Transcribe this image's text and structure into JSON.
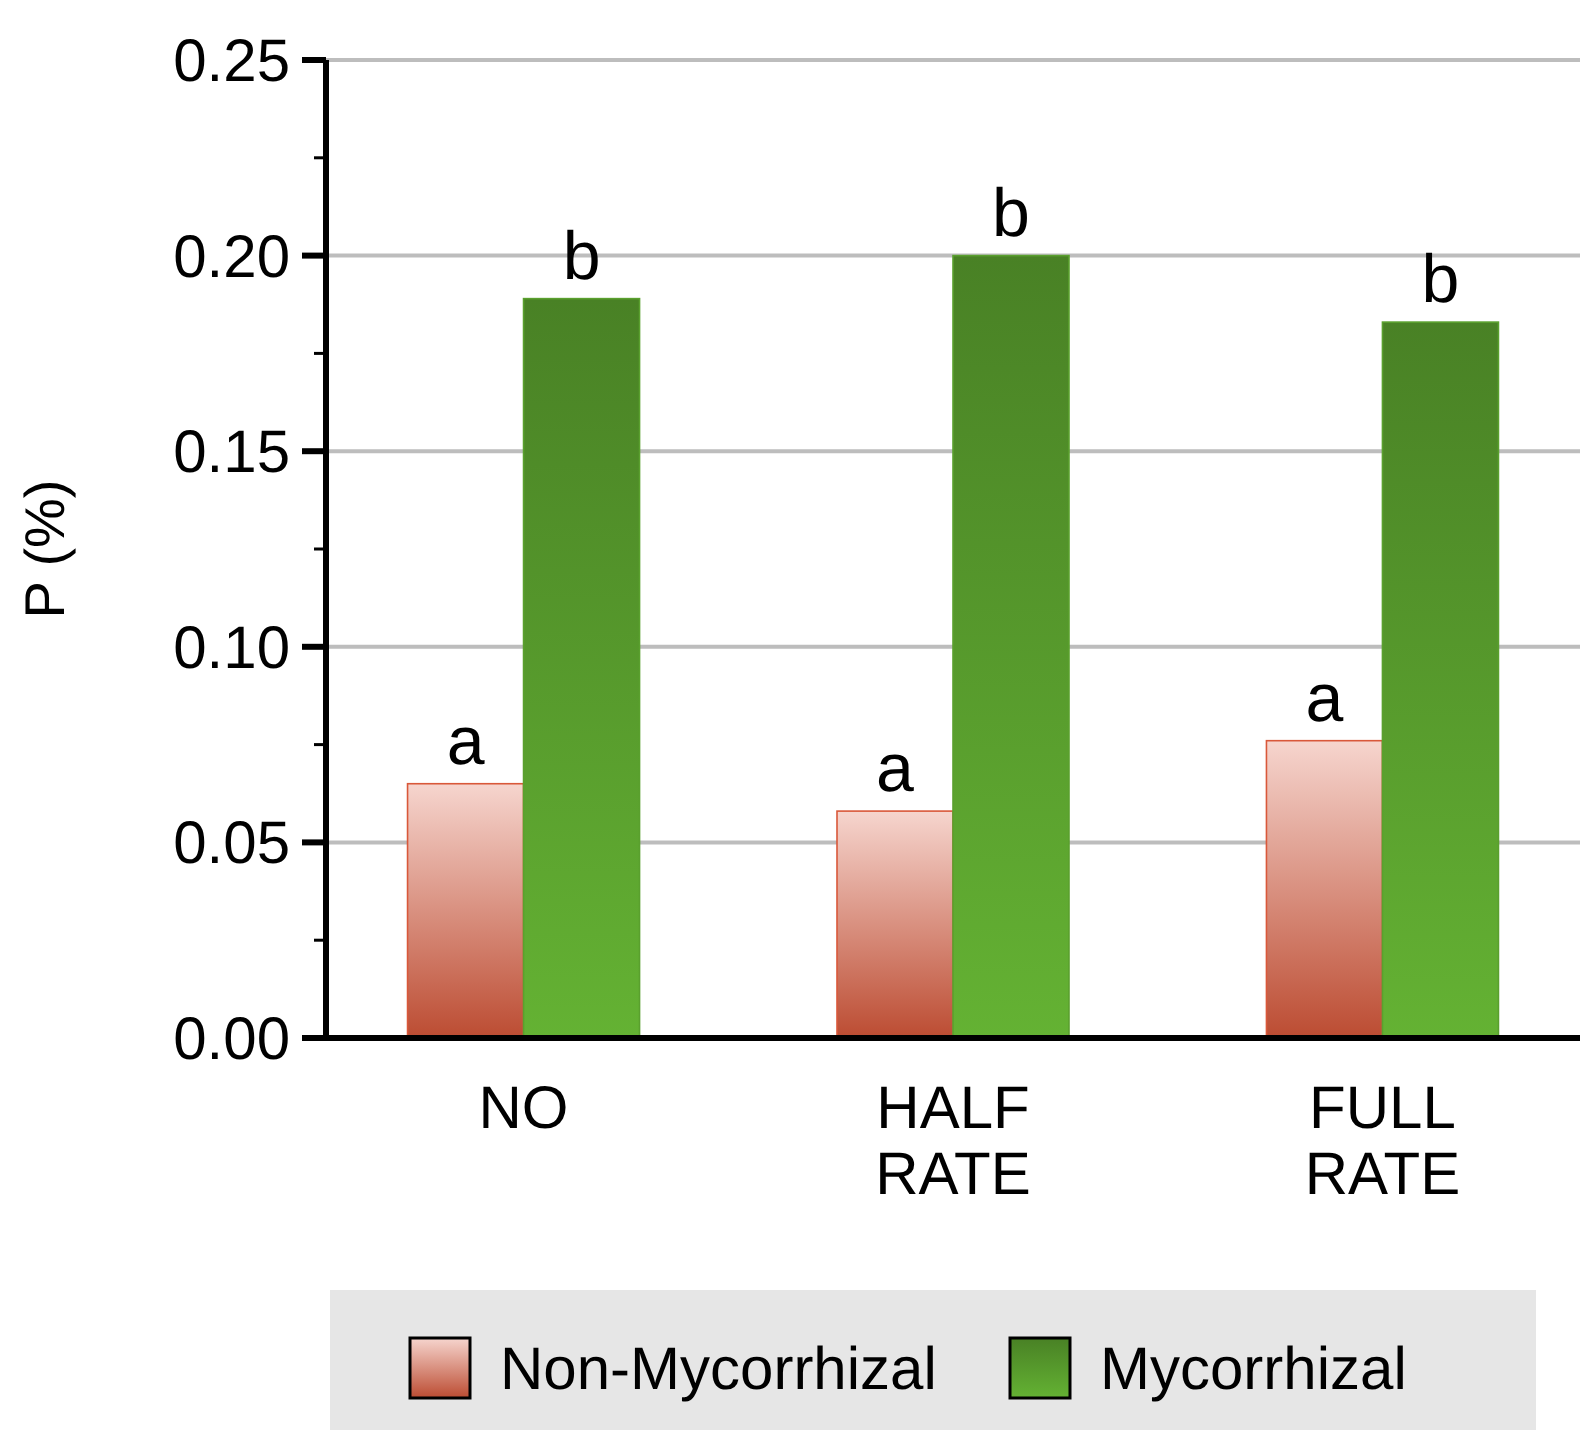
{
  "chart_data": {
    "type": "bar",
    "ylabel": "P (%)",
    "categories": [
      "NO",
      "HALF\nRATE",
      "FULL\nRATE"
    ],
    "series": [
      {
        "name": "Non-Mycorrhizal",
        "color": "#d9583a",
        "values": [
          0.065,
          0.058,
          0.076
        ]
      },
      {
        "name": "Mycorrhizal",
        "color": "#5aa02e",
        "values": [
          0.189,
          0.2,
          0.183
        ]
      }
    ],
    "ylim": [
      0,
      0.25
    ],
    "yticks": [
      {
        "value": 0,
        "label": "0.00"
      },
      {
        "value": 0.025,
        "label": null
      },
      {
        "value": 0.05,
        "label": "0.05"
      },
      {
        "value": 0.075,
        "label": null
      },
      {
        "value": 0.1,
        "label": "0.10"
      },
      {
        "value": 0.125,
        "label": null
      },
      {
        "value": 0.15,
        "label": "0.15"
      },
      {
        "value": 0.175,
        "label": null
      },
      {
        "value": 0.2,
        "label": "0.20"
      },
      {
        "value": 0.225,
        "label": null
      },
      {
        "value": 0.25,
        "label": "0.25"
      }
    ],
    "grid": "y",
    "legend": "bottom",
    "annotations": [
      {
        "text": "a",
        "x": "NO",
        "y": 0.065
      },
      {
        "text": "b",
        "x": "NO",
        "y": 0.189
      },
      {
        "text": "a",
        "x": "HALF\nRATE",
        "y": 0.058
      },
      {
        "text": "b",
        "x": "HALF\nRATE",
        "y": 0.2
      },
      {
        "text": "a",
        "x": "FULL\nRATE",
        "y": 0.076
      },
      {
        "text": "b",
        "x": "FULL\nRATE",
        "y": 0.183
      }
    ]
  }
}
